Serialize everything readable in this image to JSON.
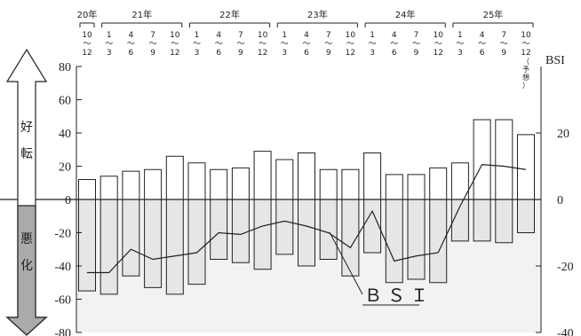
{
  "chart_data": {
    "type": "bar",
    "categories": [
      {
        "year": "20年",
        "months": "10～12"
      },
      {
        "year": "21年",
        "months": "1～3"
      },
      {
        "year": "",
        "months": "4～6"
      },
      {
        "year": "",
        "months": "7～9"
      },
      {
        "year": "",
        "months": "10～12"
      },
      {
        "year": "22年",
        "months": "1～3"
      },
      {
        "year": "",
        "months": "4～6"
      },
      {
        "year": "",
        "months": "7～9"
      },
      {
        "year": "",
        "months": "10～12"
      },
      {
        "year": "23年",
        "months": "1～3"
      },
      {
        "year": "",
        "months": "4～6"
      },
      {
        "year": "",
        "months": "7～9"
      },
      {
        "year": "",
        "months": "10～12"
      },
      {
        "year": "24年",
        "months": "1～3"
      },
      {
        "year": "",
        "months": "4～6"
      },
      {
        "year": "",
        "months": "7～9"
      },
      {
        "year": "",
        "months": "10～12"
      },
      {
        "year": "25年",
        "months": "1～3"
      },
      {
        "year": "",
        "months": "4～6"
      },
      {
        "year": "",
        "months": "7～9"
      },
      {
        "year": "",
        "months": "10～12"
      }
    ],
    "forecast_note": "（予想）",
    "series": [
      {
        "kind": "bar-positive",
        "values": [
          12,
          14,
          17,
          18,
          26,
          22,
          18,
          19,
          29,
          24,
          28,
          18,
          18,
          28,
          15,
          15,
          19,
          22,
          48,
          48,
          39
        ]
      },
      {
        "kind": "bar-negative",
        "values": [
          -55,
          -57,
          -46,
          -53,
          -57,
          -51,
          -36,
          -38,
          -42,
          -33,
          -40,
          -36,
          -46,
          -32,
          -50,
          -48,
          -50,
          -25,
          -25,
          -26,
          -20
        ]
      },
      {
        "name": "BSI",
        "kind": "line",
        "values": [
          -22,
          -22,
          -15,
          -18,
          -17,
          -16,
          -10,
          -10.5,
          -8,
          -6.5,
          -8,
          -10,
          -14.5,
          -3.5,
          -18.5,
          -17,
          -16,
          -2,
          10.5,
          10,
          9
        ]
      }
    ],
    "left_axis": {
      "ylim": [
        -80,
        80
      ],
      "ticks": [
        "80",
        "60",
        "40",
        "20",
        "0",
        "-20",
        "-40",
        "-60",
        "-80"
      ]
    },
    "right_axis": {
      "label": "BSI",
      "ylim": [
        -40,
        40
      ],
      "ticks": [
        "20",
        "0",
        "-20",
        "-40"
      ]
    },
    "side_labels": {
      "upper": "好\n転",
      "lower": "悪\n化"
    },
    "line_label": "ＢＳＩ",
    "colors": {
      "negative_fill": "#e6e6e6",
      "positive_fill": "#ffffff",
      "stroke": "#222222"
    }
  }
}
